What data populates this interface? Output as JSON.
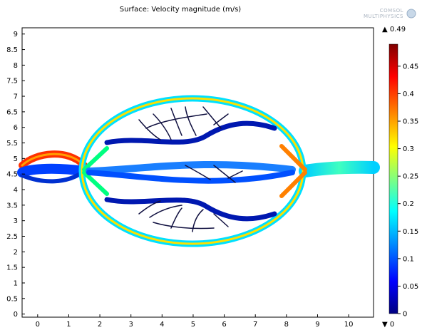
{
  "chart_data": {
    "type": "surface",
    "title": "Surface: Velocity magnitude (m/s)",
    "x_ticks": [
      0,
      1,
      2,
      3,
      4,
      5,
      6,
      7,
      8,
      9,
      10
    ],
    "y_ticks": [
      0,
      0.5,
      1,
      1.5,
      2,
      2.5,
      3,
      3.5,
      4,
      4.5,
      5,
      5.5,
      6,
      6.5,
      7,
      7.5,
      8,
      8.5,
      9
    ],
    "xlim": [
      -0.5,
      10.8
    ],
    "ylim": [
      -0.1,
      9.2
    ],
    "colorbar": {
      "label_max": "▲ 0.49",
      "label_min": "▼ 0",
      "range": [
        0,
        0.49
      ],
      "ticks": [
        0,
        0.05,
        0.1,
        0.15,
        0.2,
        0.25,
        0.3,
        0.35,
        0.4,
        0.45
      ],
      "colormap": "rainbow",
      "colors": [
        "#000080",
        "#0000ff",
        "#00a0ff",
        "#00ffff",
        "#80ff80",
        "#ffff00",
        "#ff8000",
        "#ff0000",
        "#800000"
      ]
    },
    "logo_text": "COMSOL MULTIPHYSICS"
  }
}
